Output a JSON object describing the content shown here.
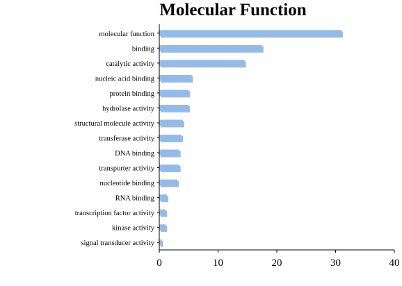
{
  "chart_data": {
    "type": "bar",
    "orientation": "horizontal",
    "title": "Molecular Function",
    "xlabel": "",
    "ylabel": "",
    "xlim": [
      0,
      40
    ],
    "x_ticks": [
      "0",
      "10",
      "20",
      "30",
      "40"
    ],
    "grid": false,
    "legend": "none",
    "bar_color": "#8fbcf0",
    "bar_shadow_color": "#b7b7b7",
    "categories": [
      "molecular function",
      "binding",
      "catalytic activity",
      "nucleic acid binding",
      "protein binding",
      "hydrolase activity",
      "structural molecule activity",
      "transferase activity",
      "DNA binding",
      "transporter activity",
      "nucleotide binding",
      "RNA binding",
      "transcription factor activity",
      "kinase activity",
      "signal transducer activity"
    ],
    "values": [
      31,
      17.5,
      14.5,
      5.5,
      5,
      5,
      4,
      3.8,
      3.4,
      3.4,
      3.1,
      1.3,
      1.1,
      1.1,
      0.4
    ]
  }
}
